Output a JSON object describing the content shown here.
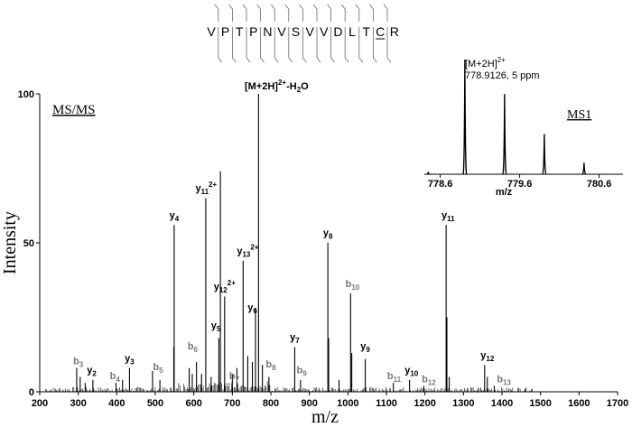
{
  "chart_data": [
    {
      "type": "bar",
      "subtype": "mass-spectrum-stick",
      "panel_label": "MS/MS",
      "xlabel": "m/z",
      "ylabel": "Intensity",
      "xlim": [
        200,
        1700
      ],
      "ylim": [
        0,
        100
      ],
      "x_ticks": [
        200,
        300,
        400,
        500,
        600,
        700,
        800,
        900,
        1000,
        1100,
        1200,
        1300,
        1400,
        1500,
        1600,
        1700
      ],
      "y_ticks": [
        0,
        50,
        100
      ],
      "sequence": [
        "V",
        "P",
        "T",
        "P",
        "N",
        "V",
        "S",
        "V",
        "V",
        "D",
        "L",
        "T",
        "C",
        "R"
      ],
      "sequence_underlined_index": 12,
      "peaks": [
        {
          "x": 296,
          "y": 8
        },
        {
          "x": 305,
          "y": 5
        },
        {
          "x": 318,
          "y": 3
        },
        {
          "x": 338,
          "y": 4
        },
        {
          "x": 398,
          "y": 3
        },
        {
          "x": 415,
          "y": 4
        },
        {
          "x": 433,
          "y": 8
        },
        {
          "x": 493,
          "y": 7
        },
        {
          "x": 512,
          "y": 4
        },
        {
          "x": 548,
          "y": 15
        },
        {
          "x": 549,
          "y": 56
        },
        {
          "x": 588,
          "y": 8
        },
        {
          "x": 596,
          "y": 6
        },
        {
          "x": 607,
          "y": 10
        },
        {
          "x": 620,
          "y": 6
        },
        {
          "x": 631,
          "y": 65
        },
        {
          "x": 645,
          "y": 5
        },
        {
          "x": 665,
          "y": 18
        },
        {
          "x": 669,
          "y": 74
        },
        {
          "x": 680,
          "y": 32
        },
        {
          "x": 700,
          "y": 6
        },
        {
          "x": 712,
          "y": 8
        },
        {
          "x": 728,
          "y": 44
        },
        {
          "x": 740,
          "y": 12
        },
        {
          "x": 752,
          "y": 10
        },
        {
          "x": 760,
          "y": 28
        },
        {
          "x": 768,
          "y": 100
        },
        {
          "x": 778,
          "y": 9
        },
        {
          "x": 795,
          "y": 5
        },
        {
          "x": 862,
          "y": 15
        },
        {
          "x": 877,
          "y": 4
        },
        {
          "x": 948,
          "y": 50
        },
        {
          "x": 950,
          "y": 18
        },
        {
          "x": 977,
          "y": 4
        },
        {
          "x": 1007,
          "y": 33
        },
        {
          "x": 1010,
          "y": 13
        },
        {
          "x": 1045,
          "y": 11
        },
        {
          "x": 1118,
          "y": 3
        },
        {
          "x": 1160,
          "y": 4
        },
        {
          "x": 1197,
          "y": 2
        },
        {
          "x": 1255,
          "y": 56
        },
        {
          "x": 1257,
          "y": 25
        },
        {
          "x": 1263,
          "y": 5
        },
        {
          "x": 1355,
          "y": 9
        },
        {
          "x": 1362,
          "y": 5
        },
        {
          "x": 1380,
          "y": 2
        },
        {
          "x": 1460,
          "y": 1
        }
      ],
      "annotations": [
        {
          "x": 300,
          "y": 8,
          "ion": "b",
          "num": "3",
          "charge": "",
          "color": "#777777"
        },
        {
          "x": 335,
          "y": 5,
          "ion": "y",
          "num": "2",
          "charge": "",
          "color": "#000000"
        },
        {
          "x": 395,
          "y": 3,
          "ion": "b",
          "num": "4",
          "charge": "",
          "color": "#777777"
        },
        {
          "x": 433,
          "y": 9,
          "ion": "y",
          "num": "3",
          "charge": "",
          "color": "#000000"
        },
        {
          "x": 507,
          "y": 6,
          "ion": "b",
          "num": "5",
          "charge": "",
          "color": "#777777"
        },
        {
          "x": 549,
          "y": 57,
          "ion": "y",
          "num": "4",
          "charge": "",
          "color": "#000000"
        },
        {
          "x": 597,
          "y": 13,
          "ion": "b",
          "num": "6",
          "charge": "",
          "color": "#777777"
        },
        {
          "x": 632,
          "y": 66,
          "ion": "y",
          "num": "11",
          "charge": "2+",
          "color": "#000000"
        },
        {
          "x": 657,
          "y": 20,
          "ion": "y",
          "num": "5",
          "charge": "",
          "color": "#000000"
        },
        {
          "x": 680,
          "y": 33,
          "ion": "y",
          "num": "12",
          "charge": "2+",
          "color": "#000000"
        },
        {
          "x": 705,
          "y": 3,
          "ion": "b",
          "num": "7",
          "charge": "",
          "color": "#777777"
        },
        {
          "x": 740,
          "y": 45,
          "ion": "y",
          "num": "13",
          "charge": "2+",
          "color": "#000000"
        },
        {
          "x": 752,
          "y": 26,
          "ion": "y",
          "num": "6",
          "charge": "",
          "color": "#000000"
        },
        {
          "x": 800,
          "y": 7,
          "ion": "b",
          "num": "8",
          "charge": "",
          "color": "#777777"
        },
        {
          "x": 862,
          "y": 16,
          "ion": "y",
          "num": "7",
          "charge": "",
          "color": "#000000"
        },
        {
          "x": 880,
          "y": 5,
          "ion": "b",
          "num": "9",
          "charge": "",
          "color": "#777777"
        },
        {
          "x": 948,
          "y": 51,
          "ion": "y",
          "num": "8",
          "charge": "",
          "color": "#000000"
        },
        {
          "x": 1012,
          "y": 34,
          "ion": "b",
          "num": "10",
          "charge": "",
          "color": "#777777"
        },
        {
          "x": 1045,
          "y": 13,
          "ion": "y",
          "num": "9",
          "charge": "",
          "color": "#000000"
        },
        {
          "x": 1120,
          "y": 3,
          "ion": "b",
          "num": "11",
          "charge": "",
          "color": "#777777"
        },
        {
          "x": 1165,
          "y": 5,
          "ion": "y",
          "num": "10",
          "charge": "",
          "color": "#000000"
        },
        {
          "x": 1210,
          "y": 2,
          "ion": "b",
          "num": "12",
          "charge": "",
          "color": "#777777"
        },
        {
          "x": 1260,
          "y": 57,
          "ion": "y",
          "num": "11",
          "charge": "",
          "color": "#000000"
        },
        {
          "x": 1362,
          "y": 10,
          "ion": "y",
          "num": "12",
          "charge": "",
          "color": "#000000"
        },
        {
          "x": 1405,
          "y": 2,
          "ion": "b",
          "num": "13",
          "charge": "",
          "color": "#777777"
        }
      ],
      "precursor_label": "[M+2H]",
      "precursor_charge": "2+",
      "precursor_loss": "-H",
      "precursor_loss_sub": "2",
      "precursor_loss_tail": "O"
    },
    {
      "type": "line",
      "subtype": "isotope-envelope",
      "panel_label": "MS1",
      "xlabel": "m/z",
      "xlim": [
        778.4,
        780.9
      ],
      "ylim": [
        0,
        100
      ],
      "x_ticks": [
        778.6,
        779.6,
        780.6
      ],
      "x_tick_labels": [
        "778.6",
        "779.6",
        "780.6"
      ],
      "peaks": [
        {
          "x": 778.91,
          "y": 100,
          "w": 0.022
        },
        {
          "x": 779.41,
          "y": 70,
          "w": 0.022
        },
        {
          "x": 779.91,
          "y": 35,
          "w": 0.022
        },
        {
          "x": 780.41,
          "y": 10,
          "w": 0.022
        },
        {
          "x": 778.45,
          "y": 2,
          "w": 0.015
        }
      ],
      "annotation_label": "[M+2H]",
      "annotation_charge": "2+",
      "annotation_value": "778.9126, 5 ppm"
    }
  ]
}
